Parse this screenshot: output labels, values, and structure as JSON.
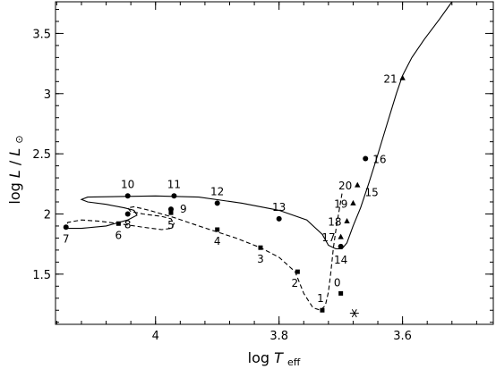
{
  "chart_data": {
    "type": "scatter",
    "xlabel_prefix": "log",
    "xlabel_symbol": "T",
    "xlabel_sub": "eff",
    "ylabel_prefix": "log",
    "ylabel_symbol": "L",
    "ylabel_sep": "/",
    "ylabel_sym2": "L",
    "ylabel_sub": "⊙",
    "xlim": [
      4.162,
      3.453
    ],
    "ylim": [
      1.083,
      3.763
    ],
    "x_ticks": [
      {
        "value": 4.0,
        "label": "4"
      },
      {
        "value": 3.8,
        "label": "3.8"
      },
      {
        "value": 3.6,
        "label": "3.6"
      }
    ],
    "y_ticks": [
      {
        "value": 1.5,
        "label": "1.5"
      },
      {
        "value": 2.0,
        "label": "2"
      },
      {
        "value": 2.5,
        "label": "2.5"
      },
      {
        "value": 3.0,
        "label": "3"
      },
      {
        "value": 3.5,
        "label": "3.5"
      }
    ],
    "series": [
      {
        "style": "dashed",
        "line": [
          [
            3.698,
            2.17
          ],
          [
            3.702,
            2.05
          ],
          [
            3.707,
            1.9
          ],
          [
            3.712,
            1.72
          ],
          [
            3.716,
            1.52
          ],
          [
            3.72,
            1.35
          ],
          [
            3.725,
            1.24
          ],
          [
            3.733,
            1.2
          ],
          [
            3.745,
            1.22
          ],
          [
            3.76,
            1.34
          ],
          [
            3.774,
            1.52
          ],
          [
            3.8,
            1.64
          ],
          [
            3.83,
            1.72
          ],
          [
            3.87,
            1.8
          ],
          [
            3.93,
            1.9
          ],
          [
            3.97,
            1.97
          ],
          [
            4.01,
            2.03
          ],
          [
            4.035,
            2.06
          ],
          [
            4.045,
            2.05
          ],
          [
            4.04,
            2.02
          ],
          [
            4.02,
            2.0
          ],
          [
            3.99,
            1.98
          ],
          [
            3.975,
            1.96
          ],
          [
            3.97,
            1.92
          ],
          [
            3.975,
            1.88
          ],
          [
            3.99,
            1.87
          ],
          [
            4.02,
            1.89
          ],
          [
            4.06,
            1.92
          ],
          [
            4.09,
            1.94
          ],
          [
            4.12,
            1.95
          ],
          [
            4.142,
            1.93
          ],
          [
            4.145,
            1.9
          ]
        ]
      },
      {
        "style": "solid",
        "line": [
          [
            4.145,
            1.88
          ],
          [
            4.12,
            1.88
          ],
          [
            4.08,
            1.9
          ],
          [
            4.045,
            1.95
          ],
          [
            4.03,
            1.99
          ],
          [
            4.035,
            2.03
          ],
          [
            4.05,
            2.05
          ],
          [
            4.08,
            2.08
          ],
          [
            4.11,
            2.1
          ],
          [
            4.12,
            2.12
          ],
          [
            4.11,
            2.14
          ],
          [
            4.0,
            2.15
          ],
          [
            3.93,
            2.14
          ],
          [
            3.86,
            2.09
          ],
          [
            3.8,
            2.03
          ],
          [
            3.755,
            1.95
          ],
          [
            3.73,
            1.83
          ],
          [
            3.72,
            1.74
          ],
          [
            3.708,
            1.71
          ],
          [
            3.698,
            1.71
          ],
          [
            3.69,
            1.76
          ],
          [
            3.68,
            1.9
          ],
          [
            3.668,
            2.05
          ],
          [
            3.655,
            2.25
          ],
          [
            3.642,
            2.46
          ],
          [
            3.625,
            2.75
          ],
          [
            3.61,
            3.0
          ],
          [
            3.6,
            3.15
          ],
          [
            3.585,
            3.3
          ],
          [
            3.565,
            3.45
          ],
          [
            3.54,
            3.62
          ],
          [
            3.52,
            3.763
          ]
        ]
      }
    ],
    "points": [
      {
        "label": "0",
        "x": 3.7,
        "y": 1.34,
        "marker": "square",
        "dx": -4,
        "dy": -8,
        "anchor": "middle"
      },
      {
        "label": "1",
        "x": 3.73,
        "y": 1.2,
        "marker": "square",
        "dx": -2,
        "dy": -9,
        "anchor": "middle"
      },
      {
        "label": "2",
        "x": 3.77,
        "y": 1.52,
        "marker": "square",
        "dx": -3,
        "dy": 17,
        "anchor": "middle"
      },
      {
        "label": "3",
        "x": 3.83,
        "y": 1.72,
        "marker": "square",
        "dx": 0,
        "dy": 17,
        "anchor": "middle"
      },
      {
        "label": "4",
        "x": 3.9,
        "y": 1.87,
        "marker": "square",
        "dx": 0,
        "dy": 17,
        "anchor": "middle"
      },
      {
        "label": "5",
        "x": 3.975,
        "y": 2.01,
        "marker": "square",
        "dx": 0,
        "dy": 18,
        "anchor": "middle"
      },
      {
        "label": "6",
        "x": 4.06,
        "y": 1.92,
        "marker": "square",
        "dx": 0,
        "dy": 17,
        "anchor": "middle"
      },
      {
        "label": "7",
        "x": 4.145,
        "y": 1.89,
        "marker": "circle",
        "dx": 0,
        "dy": 17,
        "anchor": "middle"
      },
      {
        "label": "8",
        "x": 4.045,
        "y": 2.0,
        "marker": "circle",
        "dx": 0,
        "dy": 16,
        "anchor": "middle"
      },
      {
        "label": "9",
        "x": 3.975,
        "y": 2.04,
        "marker": "circle",
        "dx": 10,
        "dy": 4,
        "anchor": "start"
      },
      {
        "label": "10",
        "x": 4.045,
        "y": 2.15,
        "marker": "circle",
        "dx": 0,
        "dy": -9,
        "anchor": "middle"
      },
      {
        "label": "11",
        "x": 3.97,
        "y": 2.15,
        "marker": "circle",
        "dx": 0,
        "dy": -9,
        "anchor": "middle"
      },
      {
        "label": "12",
        "x": 3.9,
        "y": 2.09,
        "marker": "circle",
        "dx": 0,
        "dy": -9,
        "anchor": "middle"
      },
      {
        "label": "13",
        "x": 3.8,
        "y": 1.96,
        "marker": "circle",
        "dx": 0,
        "dy": -9,
        "anchor": "middle"
      },
      {
        "label": "14",
        "x": 3.7,
        "y": 1.73,
        "marker": "circle",
        "dx": 0,
        "dy": 19,
        "anchor": "middle"
      },
      {
        "label": "15",
        "x": 3.65,
        "y": 2.17,
        "marker": "none",
        "dx": 0,
        "dy": 3,
        "anchor": "middle"
      },
      {
        "label": "16",
        "x": 3.66,
        "y": 2.46,
        "marker": "circle",
        "dx": 8,
        "dy": 5,
        "anchor": "start"
      },
      {
        "label": "17",
        "x": 3.7,
        "y": 1.81,
        "marker": "triangle",
        "dx": -6,
        "dy": 5,
        "anchor": "end"
      },
      {
        "label": "18",
        "x": 3.69,
        "y": 1.94,
        "marker": "triangle",
        "dx": -6,
        "dy": 5,
        "anchor": "end"
      },
      {
        "label": "19",
        "x": 3.68,
        "y": 2.09,
        "marker": "triangle",
        "dx": -6,
        "dy": 5,
        "anchor": "end"
      },
      {
        "label": "20",
        "x": 3.673,
        "y": 2.24,
        "marker": "triangle",
        "dx": -6,
        "dy": 5,
        "anchor": "end"
      },
      {
        "label": "21",
        "x": 3.6,
        "y": 3.13,
        "marker": "triangle",
        "dx": -6,
        "dy": 5,
        "anchor": "end"
      },
      {
        "label": "",
        "x": 3.678,
        "y": 1.175,
        "marker": "star",
        "dx": 0,
        "dy": 0,
        "anchor": "middle"
      }
    ]
  }
}
